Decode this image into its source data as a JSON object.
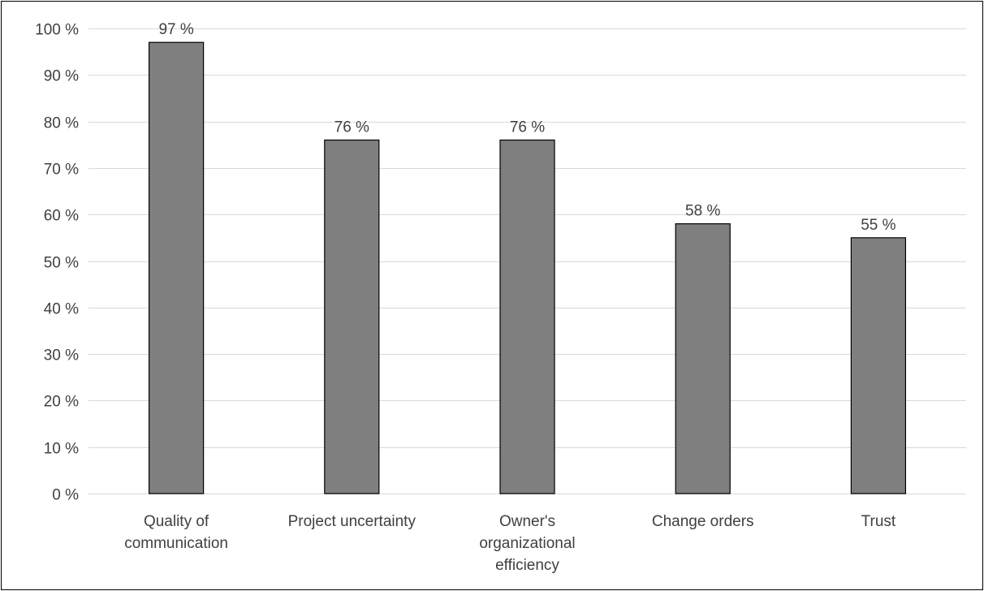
{
  "chart_data": {
    "type": "bar",
    "categories": [
      [
        "Quality of",
        "communication"
      ],
      [
        "Project uncertainty"
      ],
      [
        "Owner's",
        "organizational",
        "efficiency"
      ],
      [
        "Change orders"
      ],
      [
        "Trust"
      ]
    ],
    "values": [
      97,
      76,
      76,
      58,
      55
    ],
    "data_labels": [
      "97 %",
      "76 %",
      "76 %",
      "58 %",
      "55 %"
    ],
    "y_ticks": [
      {
        "value": 0,
        "label": "0 %"
      },
      {
        "value": 10,
        "label": "10 %"
      },
      {
        "value": 20,
        "label": "20 %"
      },
      {
        "value": 30,
        "label": "30 %"
      },
      {
        "value": 40,
        "label": "40 %"
      },
      {
        "value": 50,
        "label": "50 %"
      },
      {
        "value": 60,
        "label": "60 %"
      },
      {
        "value": 70,
        "label": "70 %"
      },
      {
        "value": 80,
        "label": "80 %"
      },
      {
        "value": 90,
        "label": "90 %"
      },
      {
        "value": 100,
        "label": "100 %"
      }
    ],
    "ylim": [
      0,
      100
    ],
    "grid": true,
    "legend": "none",
    "title": "",
    "xlabel": "",
    "ylabel": "",
    "colors": {
      "bar_fill": "#7f7f7f",
      "bar_stroke": "#000000",
      "grid": "#d9d9d9",
      "axis": "#d9d9d9",
      "text": "#404040"
    }
  }
}
